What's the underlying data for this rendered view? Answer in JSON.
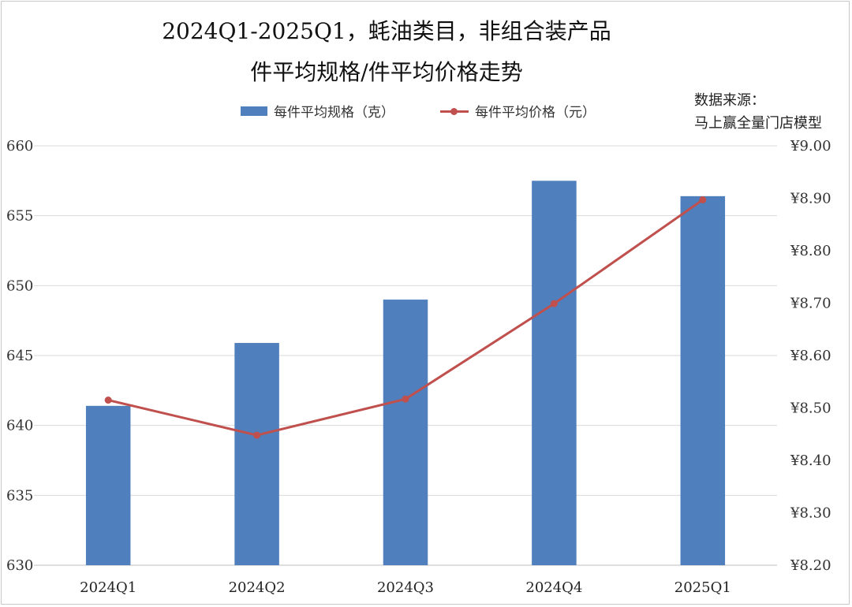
{
  "colors": {
    "bar": "#4f7fbc",
    "line": "#c0504d",
    "grid": "#d9d9d9"
  },
  "title": {
    "line1": "2024Q1-2025Q1，蚝油类目，非组合装产品",
    "line2": "件平均规格/件平均价格走势"
  },
  "legend": {
    "bar_label": "每件平均规格（克）",
    "line_label": "每件平均价格（元）",
    "position": "top"
  },
  "source": {
    "line1": "数据来源：",
    "line2": "马上赢全量门店模型"
  },
  "chart_data": {
    "type": "bar",
    "categories": [
      "2024Q1",
      "2024Q2",
      "2024Q3",
      "2024Q4",
      "2025Q1"
    ],
    "series": [
      {
        "name": "每件平均规格（克）",
        "type": "bar",
        "axis": "left",
        "values": [
          641.4,
          645.9,
          649.0,
          657.5,
          656.4
        ]
      },
      {
        "name": "每件平均价格（元）",
        "type": "line",
        "axis": "right",
        "values": [
          8.515,
          8.448,
          8.517,
          8.699,
          8.897
        ]
      }
    ],
    "y_left": {
      "min": 630,
      "max": 660,
      "ticks": [
        "660",
        "655",
        "650",
        "645",
        "640",
        "635",
        "630"
      ]
    },
    "y_right": {
      "min": 8.2,
      "max": 9.0,
      "ticks": [
        "¥9.00",
        "¥8.90",
        "¥8.80",
        "¥8.70",
        "¥8.60",
        "¥8.50",
        "¥8.40",
        "¥8.30",
        "¥8.20"
      ]
    },
    "grid": true
  }
}
